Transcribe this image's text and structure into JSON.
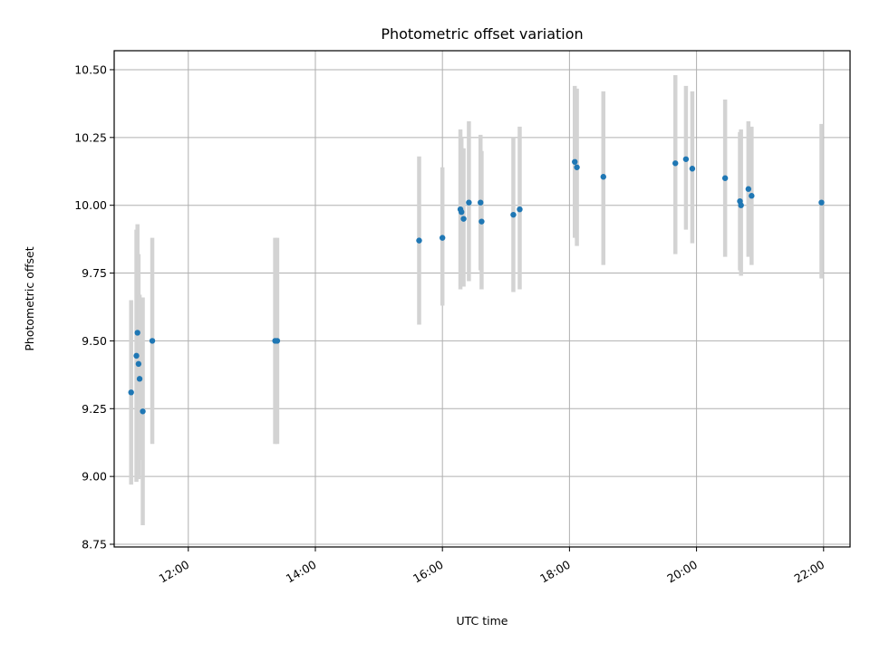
{
  "chart_data": {
    "type": "scatter",
    "title": "Photometric offset variation",
    "xlabel": "UTC time",
    "ylabel": "Photometric offset",
    "x_unit": "UTC time (HH:MM)",
    "xlim": [
      "10:50",
      "22:25"
    ],
    "ylim": [
      8.74,
      10.57
    ],
    "x_ticks": [
      "12:00",
      "14:00",
      "16:00",
      "18:00",
      "20:00",
      "22:00"
    ],
    "y_ticks": [
      "8.75",
      "9.00",
      "9.25",
      "9.50",
      "9.75",
      "10.00",
      "10.25",
      "10.50"
    ],
    "grid": true,
    "colors": {
      "marker": "#1f77b4",
      "errorbar": "#d3d3d3",
      "grid": "#b0b0b0"
    },
    "points": [
      {
        "t": "11:06",
        "y": 9.31,
        "lo": 8.97,
        "hi": 9.65
      },
      {
        "t": "11:11",
        "y": 9.445,
        "lo": 8.98,
        "hi": 9.91
      },
      {
        "t": "11:12",
        "y": 9.53,
        "lo": 9.14,
        "hi": 9.93
      },
      {
        "t": "11:13",
        "y": 9.415,
        "lo": 8.99,
        "hi": 9.82
      },
      {
        "t": "11:14",
        "y": 9.36,
        "lo": 9.06,
        "hi": 9.67
      },
      {
        "t": "11:17",
        "y": 9.24,
        "lo": 8.82,
        "hi": 9.66
      },
      {
        "t": "11:26",
        "y": 9.5,
        "lo": 9.12,
        "hi": 9.88
      },
      {
        "t": "13:22",
        "y": 9.5,
        "lo": 9.12,
        "hi": 9.88
      },
      {
        "t": "13:24",
        "y": 9.5,
        "lo": 9.12,
        "hi": 9.88
      },
      {
        "t": "15:38",
        "y": 9.87,
        "lo": 9.56,
        "hi": 10.18
      },
      {
        "t": "16:00",
        "y": 9.88,
        "lo": 9.63,
        "hi": 10.14
      },
      {
        "t": "16:17",
        "y": 9.985,
        "lo": 9.69,
        "hi": 10.28
      },
      {
        "t": "16:18",
        "y": 9.975,
        "lo": 9.7,
        "hi": 10.25
      },
      {
        "t": "16:20",
        "y": 9.95,
        "lo": 9.7,
        "hi": 10.21
      },
      {
        "t": "16:25",
        "y": 10.01,
        "lo": 9.72,
        "hi": 10.31
      },
      {
        "t": "16:36",
        "y": 10.01,
        "lo": 9.76,
        "hi": 10.26
      },
      {
        "t": "16:37",
        "y": 9.94,
        "lo": 9.69,
        "hi": 10.2
      },
      {
        "t": "17:07",
        "y": 9.965,
        "lo": 9.68,
        "hi": 10.25
      },
      {
        "t": "17:13",
        "y": 9.985,
        "lo": 9.69,
        "hi": 10.29
      },
      {
        "t": "18:05",
        "y": 10.16,
        "lo": 9.88,
        "hi": 10.44
      },
      {
        "t": "18:07",
        "y": 10.14,
        "lo": 9.85,
        "hi": 10.43
      },
      {
        "t": "18:32",
        "y": 10.105,
        "lo": 9.78,
        "hi": 10.42
      },
      {
        "t": "19:40",
        "y": 10.155,
        "lo": 9.82,
        "hi": 10.48
      },
      {
        "t": "19:50",
        "y": 10.17,
        "lo": 9.91,
        "hi": 10.44
      },
      {
        "t": "19:56",
        "y": 10.135,
        "lo": 9.86,
        "hi": 10.42
      },
      {
        "t": "20:27",
        "y": 10.1,
        "lo": 9.81,
        "hi": 10.39
      },
      {
        "t": "20:41",
        "y": 10.015,
        "lo": 9.76,
        "hi": 10.27
      },
      {
        "t": "20:42",
        "y": 10.0,
        "lo": 9.74,
        "hi": 10.28
      },
      {
        "t": "20:49",
        "y": 10.06,
        "lo": 9.81,
        "hi": 10.31
      },
      {
        "t": "20:52",
        "y": 10.035,
        "lo": 9.78,
        "hi": 10.29
      },
      {
        "t": "21:58",
        "y": 10.01,
        "lo": 9.73,
        "hi": 10.3
      }
    ]
  }
}
